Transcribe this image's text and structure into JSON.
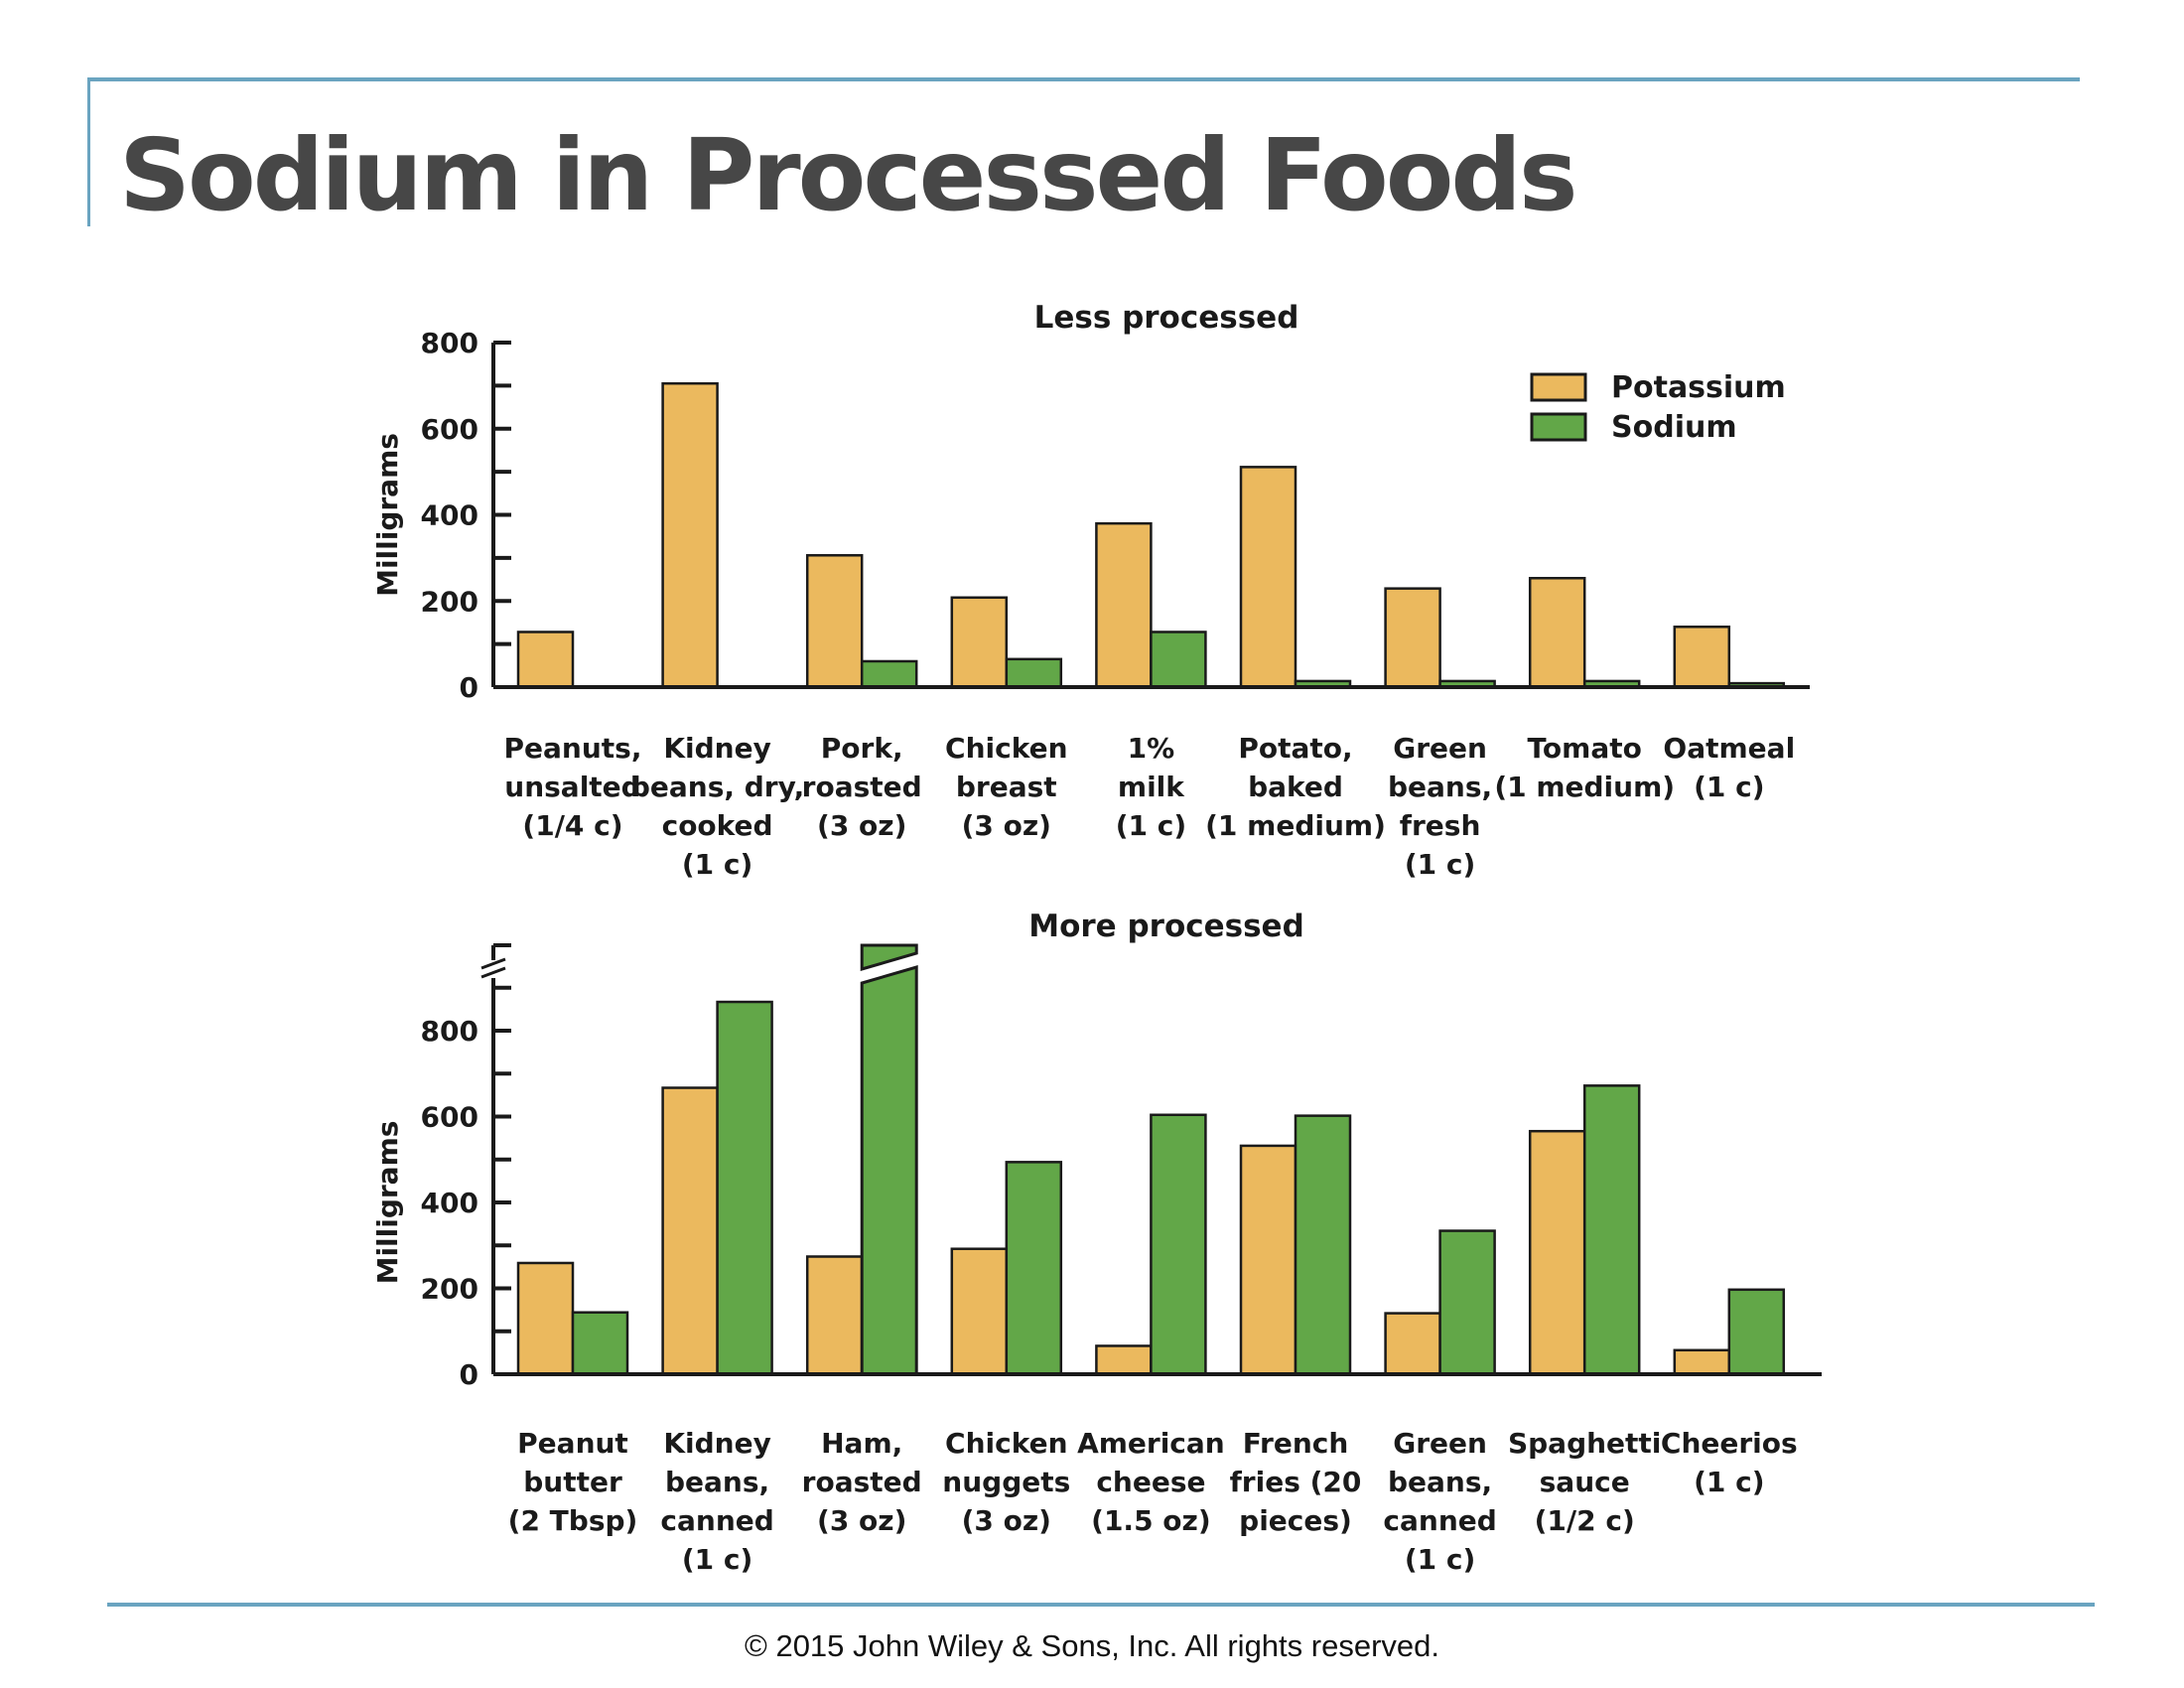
{
  "slide": {
    "title": "Sodium in Processed Foods",
    "copyright": "© 2015 John Wiley & Sons, Inc. All rights reserved.",
    "accent_color": "#6AA4C0"
  },
  "chart_data": [
    {
      "type": "bar",
      "title": "Less processed",
      "xlabel": "",
      "ylabel": "Milligrams",
      "ylim": [
        0,
        800
      ],
      "yticks": [
        0,
        200,
        400,
        600,
        800
      ],
      "minor_tick_step": 100,
      "grid": false,
      "legend_position": "top-right",
      "categories": [
        [
          "Peanuts,",
          "unsalted",
          "(1/4 c)"
        ],
        [
          "Kidney",
          "beans, dry,",
          "cooked",
          "(1 c)"
        ],
        [
          "Pork,",
          "roasted",
          "(3 oz)"
        ],
        [
          "Chicken",
          "breast",
          "(3 oz)"
        ],
        [
          "1%",
          "milk",
          "(1 c)"
        ],
        [
          "Potato,",
          "baked",
          "(1 medium)"
        ],
        [
          "Green",
          "beans,",
          "fresh",
          "(1 c)"
        ],
        [
          "Tomato",
          "(1 medium)"
        ],
        [
          "Oatmeal",
          "(1 c)"
        ]
      ],
      "series": [
        {
          "name": "Potassium",
          "color": "#EBB95E",
          "values": [
            128,
            705,
            306,
            208,
            380,
            511,
            229,
            253,
            140
          ]
        },
        {
          "name": "Sodium",
          "color": "#62A748",
          "values": [
            0,
            0,
            60,
            65,
            128,
            14,
            14,
            14,
            9
          ]
        }
      ]
    },
    {
      "type": "bar",
      "title": "More processed",
      "xlabel": "",
      "ylabel": "Milligrams",
      "ylim": [
        0,
        1000
      ],
      "yticks": [
        0,
        200,
        400,
        600,
        800
      ],
      "minor_tick_step": 100,
      "axis_break": true,
      "grid": false,
      "categories": [
        [
          "Peanut",
          "butter",
          "(2 Tbsp)"
        ],
        [
          "Kidney",
          "beans,",
          "canned",
          "(1 c)"
        ],
        [
          "Ham,",
          "roasted",
          "(3 oz)"
        ],
        [
          "Chicken",
          "nuggets",
          "(3 oz)"
        ],
        [
          "American",
          "cheese",
          "(1.5 oz)"
        ],
        [
          "French",
          "fries (20",
          "pieces)"
        ],
        [
          "Green",
          "beans,",
          "canned",
          "(1 c)"
        ],
        [
          "Spaghetti",
          "sauce",
          "(1/2 c)"
        ],
        [
          "Cheerios",
          "(1 c)"
        ]
      ],
      "series": [
        {
          "name": "Potassium",
          "color": "#EBB95E",
          "values": [
            259,
            667,
            274,
            292,
            66,
            532,
            142,
            566,
            56
          ]
        },
        {
          "name": "Sodium",
          "color": "#62A748",
          "values": [
            144,
            867,
            1300,
            494,
            604,
            602,
            334,
            672,
            197
          ],
          "broken": [
            false,
            false,
            true,
            false,
            false,
            false,
            false,
            false,
            false
          ]
        }
      ]
    }
  ]
}
